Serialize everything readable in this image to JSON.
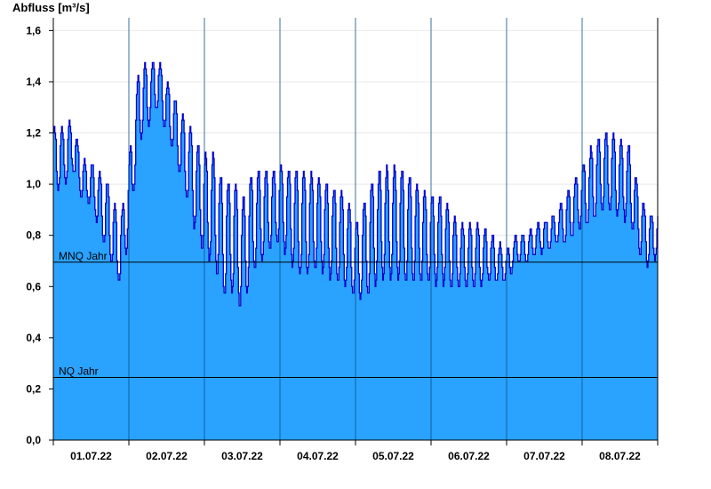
{
  "chart_data": {
    "type": "area",
    "ylabel": "Abfluss [m³/s]",
    "ylim": [
      0,
      1.65
    ],
    "yticks": [
      {
        "value": 0.0,
        "label": "0,0"
      },
      {
        "value": 0.2,
        "label": "0,2"
      },
      {
        "value": 0.4,
        "label": "0,4"
      },
      {
        "value": 0.6,
        "label": "0,6"
      },
      {
        "value": 0.8,
        "label": "0,8"
      },
      {
        "value": 1.0,
        "label": "1,0"
      },
      {
        "value": 1.2,
        "label": "1,2"
      },
      {
        "value": 1.4,
        "label": "1,4"
      },
      {
        "value": 1.6,
        "label": "1,6"
      }
    ],
    "xlim": [
      0,
      8
    ],
    "xlabels": [
      {
        "x": 0.5,
        "label": "01.07.22"
      },
      {
        "x": 1.5,
        "label": "02.07.22"
      },
      {
        "x": 2.5,
        "label": "03.07.22"
      },
      {
        "x": 3.5,
        "label": "04.07.22"
      },
      {
        "x": 4.5,
        "label": "05.07.22"
      },
      {
        "x": 5.5,
        "label": "06.07.22"
      },
      {
        "x": 6.5,
        "label": "07.07.22"
      },
      {
        "x": 7.5,
        "label": "08.07.22"
      }
    ],
    "day_dividers": [
      1,
      2,
      3,
      4,
      5,
      6,
      7
    ],
    "reference_lines": [
      {
        "name": "MNQ Jahr",
        "value": 0.695
      },
      {
        "name": "NQ Jahr",
        "value": 0.245
      }
    ],
    "series": [
      {
        "x": [
          0.0,
          0.125,
          0.25,
          0.375,
          0.5,
          0.625,
          0.75,
          0.875,
          1.0,
          1.125,
          1.25,
          1.375,
          1.5,
          1.625,
          1.75,
          1.875,
          2.0,
          2.125,
          2.25,
          2.375,
          2.5,
          2.625,
          2.75,
          2.875,
          3.0,
          3.125,
          3.25,
          3.375,
          3.5,
          3.625,
          3.75,
          3.875,
          4.0,
          4.125,
          4.25,
          4.375,
          4.5,
          4.625,
          4.75,
          4.875,
          5.0,
          5.125,
          5.25,
          5.375,
          5.5,
          5.625,
          5.75,
          5.875,
          6.0,
          6.125,
          6.25,
          6.375,
          6.5,
          6.625,
          6.75,
          6.875,
          7.0,
          7.125,
          7.25,
          7.375,
          7.5,
          7.625,
          7.75,
          7.875,
          8.0
        ],
        "mean": [
          1.1,
          1.1,
          1.15,
          1.02,
          1.0,
          0.92,
          0.85,
          0.72,
          0.95,
          1.3,
          1.35,
          1.4,
          1.3,
          1.2,
          1.1,
          1.0,
          0.92,
          0.9,
          0.78,
          0.8,
          0.72,
          0.85,
          0.88,
          0.9,
          0.92,
          0.88,
          0.85,
          0.85,
          0.85,
          0.82,
          0.8,
          0.78,
          0.7,
          0.75,
          0.82,
          0.85,
          0.85,
          0.84,
          0.82,
          0.8,
          0.78,
          0.78,
          0.75,
          0.72,
          0.72,
          0.72,
          0.72,
          0.7,
          0.68,
          0.75,
          0.75,
          0.78,
          0.8,
          0.82,
          0.85,
          0.9,
          0.95,
          1.0,
          1.05,
          1.05,
          1.02,
          1.0,
          0.85,
          0.78,
          0.8
        ],
        "amplitude": [
          0.12,
          0.12,
          0.1,
          0.08,
          0.08,
          0.12,
          0.15,
          0.12,
          0.15,
          0.15,
          0.12,
          0.1,
          0.1,
          0.12,
          0.15,
          0.18,
          0.2,
          0.22,
          0.22,
          0.22,
          0.22,
          0.2,
          0.18,
          0.15,
          0.15,
          0.18,
          0.2,
          0.2,
          0.18,
          0.18,
          0.18,
          0.18,
          0.15,
          0.2,
          0.22,
          0.22,
          0.22,
          0.22,
          0.2,
          0.18,
          0.17,
          0.17,
          0.15,
          0.12,
          0.12,
          0.12,
          0.1,
          0.08,
          0.06,
          0.05,
          0.05,
          0.06,
          0.06,
          0.06,
          0.08,
          0.1,
          0.12,
          0.15,
          0.15,
          0.15,
          0.15,
          0.15,
          0.12,
          0.1,
          0.08
        ],
        "oscillations_per_day": 10,
        "fill_color": "#29a3ff",
        "line_color": "#0000cc"
      }
    ]
  }
}
